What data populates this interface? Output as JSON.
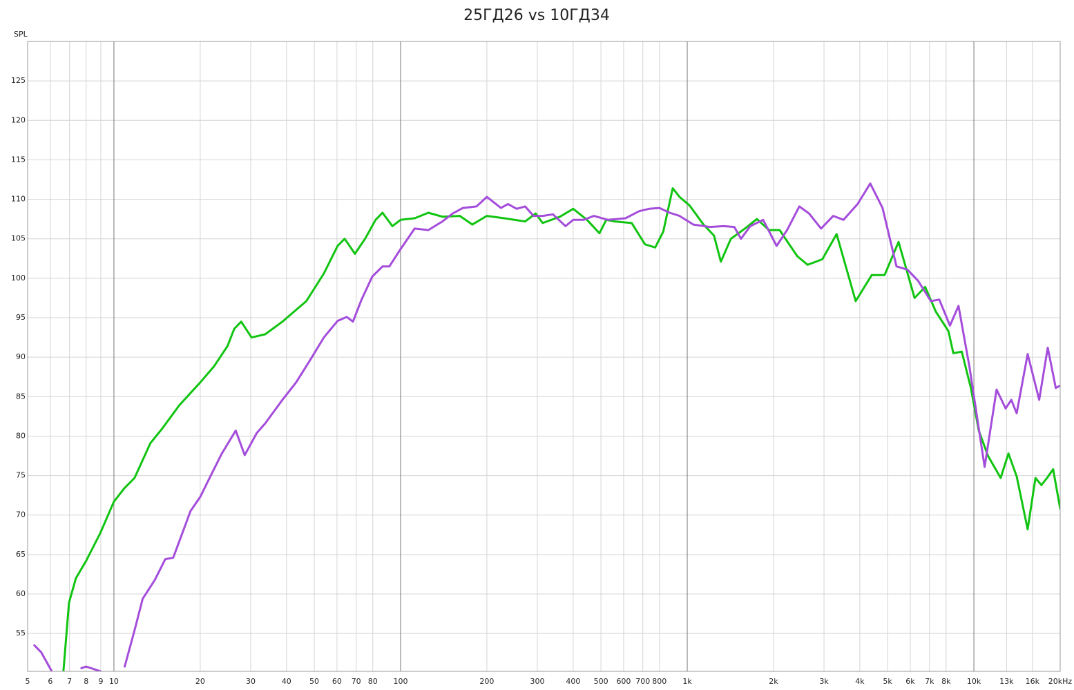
{
  "chart_data": {
    "type": "line",
    "title": "25ГД26 vs 10ГД34",
    "y_label": "SPL",
    "log_x": true,
    "grid": true,
    "xlim": [
      5,
      20000
    ],
    "ylim": [
      50.2,
      130
    ],
    "xticks": [
      5,
      6,
      7,
      8,
      9,
      10,
      20,
      30,
      40,
      50,
      60,
      70,
      80,
      100,
      200,
      300,
      400,
      500,
      600,
      700,
      800,
      {
        "value": 1000,
        "label": "1k"
      },
      {
        "value": 2000,
        "label": "2k"
      },
      {
        "value": 3000,
        "label": "3k"
      },
      {
        "value": 4000,
        "label": "4k"
      },
      {
        "value": 5000,
        "label": "5k"
      },
      {
        "value": 6000,
        "label": "6k"
      },
      {
        "value": 7000,
        "label": "7k"
      },
      {
        "value": 8000,
        "label": "8k"
      },
      {
        "value": 10000,
        "label": "10k"
      },
      {
        "value": 13000,
        "label": "13k"
      },
      {
        "value": 16000,
        "label": "16k"
      },
      {
        "value": 20000,
        "label": "20kHz"
      }
    ],
    "yticks": [
      55,
      60,
      65,
      70,
      75,
      80,
      85,
      90,
      95,
      100,
      105,
      110,
      115,
      120,
      125
    ],
    "series": [
      {
        "color": "#11c411",
        "x": [
          6.67,
          6.97,
          7.37,
          8.0,
          8.96,
          10,
          10.87,
          11.8,
          13.4,
          14.7,
          16.9,
          20,
          22.3,
          24.9,
          26.3,
          27.8,
          30.2,
          33.7,
          38.7,
          43.2,
          46.9,
          54,
          60.3,
          63.8,
          69.3,
          75.2,
          81.8,
          86.5,
          93.6,
          100,
          112,
          125,
          140,
          161,
          178,
          200,
          230,
          272,
          296,
          313,
          360,
          400,
          447,
          494,
          522,
          558,
          640,
          712,
          773,
          825,
          890,
          940,
          1020,
          1140,
          1240,
          1310,
          1420,
          1590,
          1750,
          1930,
          2100,
          2420,
          2630,
          2960,
          3320,
          3870,
          4400,
          4880,
          5460,
          6210,
          6760,
          7360,
          8150,
          8480,
          9070,
          9760,
          10400,
          11200,
          12400,
          13200,
          14100,
          15400,
          16400,
          17200,
          18000,
          18900,
          20000
        ],
        "values": [
          50.3,
          58.9,
          62.0,
          64.2,
          67.7,
          71.7,
          73.4,
          74.7,
          79.1,
          80.9,
          83.9,
          86.8,
          88.8,
          91.4,
          93.6,
          94.5,
          92.5,
          92.9,
          94.5,
          96.0,
          97.1,
          100.6,
          104.1,
          105.0,
          103.1,
          105.0,
          107.4,
          108.3,
          106.6,
          107.4,
          107.6,
          108.3,
          107.8,
          107.9,
          106.8,
          107.9,
          107.6,
          107.2,
          108.2,
          107.0,
          107.8,
          108.8,
          107.4,
          105.7,
          107.4,
          107.2,
          107.0,
          104.3,
          103.9,
          105.9,
          111.4,
          110.3,
          109.2,
          106.8,
          105.4,
          102.1,
          105.0,
          106.3,
          107.5,
          106.1,
          106.1,
          102.8,
          101.7,
          102.4,
          105.6,
          97.1,
          100.4,
          100.4,
          104.6,
          97.5,
          98.9,
          95.8,
          93.3,
          90.5,
          90.7,
          86.1,
          80.7,
          77.5,
          74.7,
          77.8,
          74.9,
          68.2,
          74.7,
          73.8,
          74.7,
          75.8,
          70.8
        ]
      },
      {
        "color": "#a44ddb",
        "x": [
          5.28,
          5.58,
          6.07,
          7.0,
          7.7,
          8.0,
          9.0,
          10.0,
          10.9,
          11.8,
          12.6,
          13.9,
          15.1,
          16.1,
          18.5,
          20,
          21.7,
          23.8,
          26.6,
          28.6,
          31.5,
          33.7,
          38.7,
          43.2,
          48.3,
          54,
          60.3,
          64.9,
          68.2,
          73.1,
          79.6,
          86.5,
          91.4,
          100,
          112,
          125,
          140,
          152,
          165,
          184,
          200,
          224,
          237,
          254,
          272,
          291,
          313,
          340,
          376,
          400,
          435,
          472,
          529,
          609,
          680,
          737,
          800,
          868,
          940,
          1050,
          1200,
          1340,
          1460,
          1540,
          1660,
          1840,
          2050,
          2230,
          2460,
          2660,
          2930,
          3230,
          3510,
          3930,
          4350,
          4800,
          5370,
          5860,
          6380,
          7080,
          7570,
          8250,
          8840,
          9650,
          10900,
          12000,
          12900,
          13500,
          14100,
          15400,
          16900,
          18100,
          19300,
          20000
        ],
        "values": [
          53.5,
          52.6,
          50.2,
          null,
          50.6,
          50.8,
          50.2,
          null,
          50.8,
          55.4,
          59.4,
          61.8,
          64.4,
          64.6,
          70.5,
          72.3,
          74.9,
          77.8,
          80.7,
          77.6,
          80.4,
          81.6,
          84.6,
          86.8,
          89.6,
          92.5,
          94.6,
          95.1,
          94.5,
          97.3,
          100.2,
          101.5,
          101.5,
          103.7,
          106.3,
          106.1,
          107.2,
          108.2,
          108.9,
          109.1,
          110.3,
          108.9,
          109.4,
          108.8,
          109.1,
          107.9,
          107.9,
          108.1,
          106.6,
          107.4,
          107.4,
          107.9,
          107.4,
          107.6,
          108.5,
          108.8,
          108.9,
          108.3,
          107.9,
          106.8,
          106.5,
          106.6,
          106.5,
          105.0,
          106.6,
          107.4,
          104.1,
          106.1,
          109.1,
          108.2,
          106.3,
          107.9,
          107.4,
          109.4,
          112.0,
          108.9,
          101.5,
          101.1,
          99.7,
          97.1,
          97.3,
          94.0,
          96.5,
          88.8,
          76.1,
          85.9,
          83.5,
          84.6,
          82.9,
          90.4,
          84.6,
          91.2,
          86.1,
          86.4
        ]
      }
    ]
  }
}
